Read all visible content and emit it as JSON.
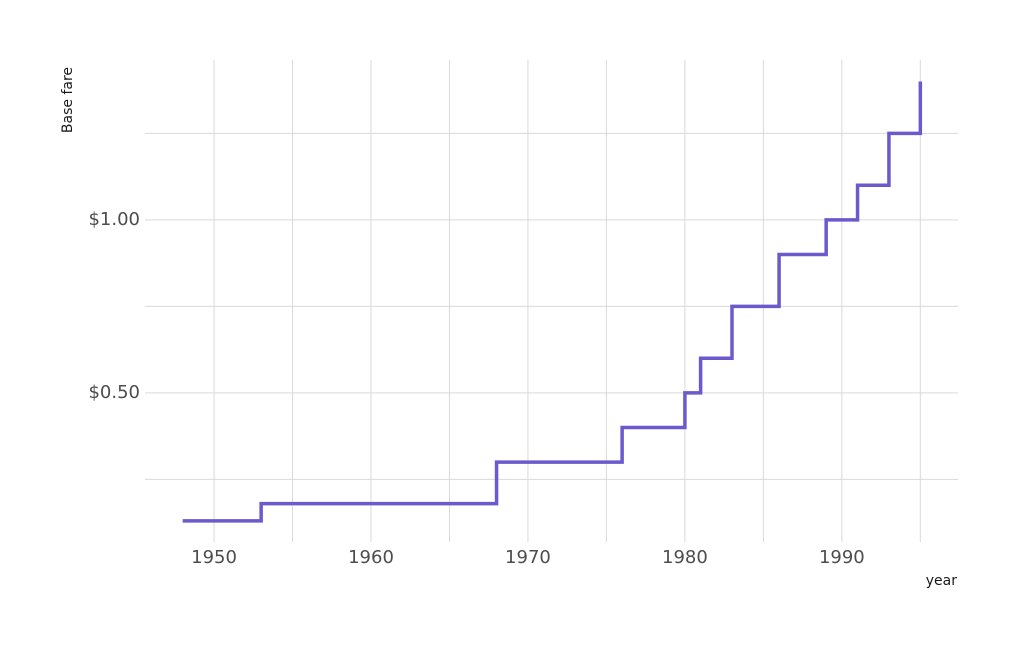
{
  "chart_data": {
    "type": "step",
    "x_label": "year",
    "y_label": "Base fare",
    "x": [
      1948,
      1953,
      1968,
      1976,
      1980,
      1981,
      1983,
      1986,
      1989,
      1991,
      1993,
      1995
    ],
    "values": [
      0.13,
      0.18,
      0.3,
      0.4,
      0.5,
      0.6,
      0.75,
      0.9,
      1.0,
      1.1,
      1.25,
      1.4
    ],
    "color": "#6a5acd",
    "xlim": [
      1945.6,
      1997.4
    ],
    "ylim": [
      0.069,
      1.462
    ],
    "xticks": [
      1950,
      1960,
      1970,
      1980,
      1990
    ],
    "xminor": [
      1955,
      1965,
      1975,
      1985,
      1995
    ],
    "yticks": [
      {
        "value": 0.5,
        "label": "$0.50"
      },
      {
        "value": 1.0,
        "label": "$1.00"
      }
    ],
    "yminor": [
      0.25,
      0.75,
      1.25
    ],
    "grid": true
  }
}
